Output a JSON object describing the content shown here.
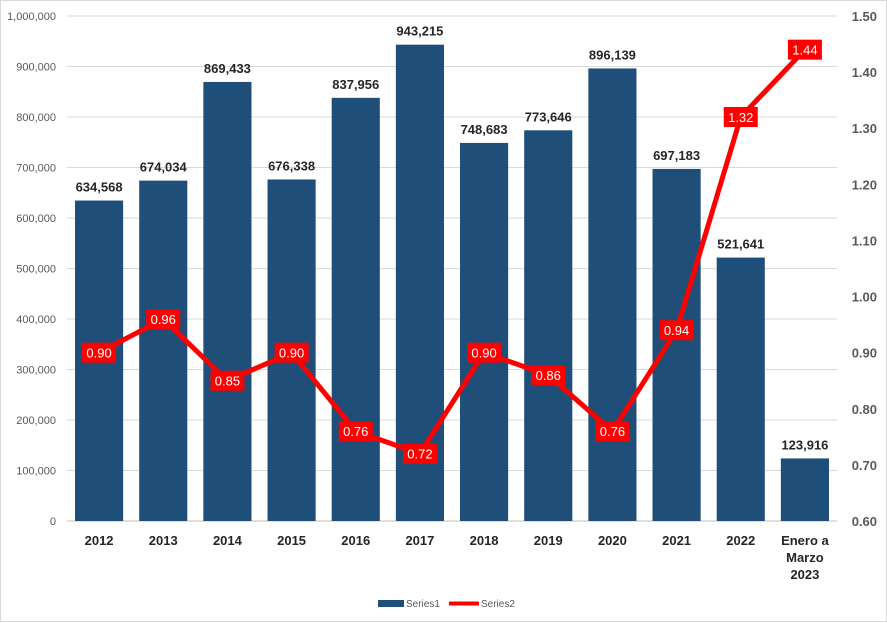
{
  "chart_data": {
    "type": "bar",
    "title": "",
    "xlabel": "",
    "ylabel": "",
    "categories": [
      "2012",
      "2013",
      "2014",
      "2015",
      "2016",
      "2017",
      "2018",
      "2019",
      "2020",
      "2021",
      "2022",
      "Enero a Marzo 2023"
    ],
    "category_lines": [
      [
        "2012"
      ],
      [
        "2013"
      ],
      [
        "2014"
      ],
      [
        "2015"
      ],
      [
        "2016"
      ],
      [
        "2017"
      ],
      [
        "2018"
      ],
      [
        "2019"
      ],
      [
        "2020"
      ],
      [
        "2021"
      ],
      [
        "2022"
      ],
      [
        "Enero  a",
        "Marzo",
        "2023"
      ]
    ],
    "series": [
      {
        "name": "Series1",
        "type": "bar",
        "axis": "left",
        "color": "#1f4e79",
        "values": [
          634568,
          674034,
          869433,
          676338,
          837956,
          943215,
          748683,
          773646,
          896139,
          697183,
          521641,
          123916
        ],
        "labels": [
          "634,568",
          "674,034",
          "869,433",
          "676,338",
          "837,956",
          "943,215",
          "748,683",
          "773,646",
          "896,139",
          "697,183",
          "521,641",
          "123,916"
        ]
      },
      {
        "name": "Series2",
        "type": "line",
        "axis": "right",
        "color": "#ff0000",
        "values": [
          0.9,
          0.96,
          0.85,
          0.9,
          0.76,
          0.72,
          0.9,
          0.86,
          0.76,
          0.94,
          1.32,
          1.44
        ],
        "labels": [
          "0.90",
          "0.96",
          "0.85",
          "0.90",
          "0.76",
          "0.72",
          "0.90",
          "0.86",
          "0.76",
          "0.94",
          "1.32",
          "1.44"
        ]
      }
    ],
    "y_left": {
      "ylim": [
        0,
        1000000
      ],
      "ticks": [
        0,
        100000,
        200000,
        300000,
        400000,
        500000,
        600000,
        700000,
        800000,
        900000,
        1000000
      ],
      "tick_labels": [
        "0",
        "100,000",
        "200,000",
        "300,000",
        "400,000",
        "500,000",
        "600,000",
        "700,000",
        "800,000",
        "900,000",
        "1,000,000"
      ]
    },
    "y_right": {
      "ylim": [
        0.6,
        1.5
      ],
      "ticks": [
        0.6,
        0.7,
        0.8,
        0.9,
        1.0,
        1.1,
        1.2,
        1.3,
        1.4,
        1.5
      ],
      "tick_labels": [
        "0.60",
        "0.70",
        "0.80",
        "0.90",
        "1.00",
        "1.10",
        "1.20",
        "1.30",
        "1.40",
        "1.50"
      ]
    },
    "grid": true,
    "legend": {
      "position": "bottom",
      "entries": [
        {
          "label": "Series1",
          "color": "#1f4e79",
          "marker": "bar"
        },
        {
          "label": "Series2",
          "color": "#ff0000",
          "marker": "line"
        }
      ]
    }
  }
}
